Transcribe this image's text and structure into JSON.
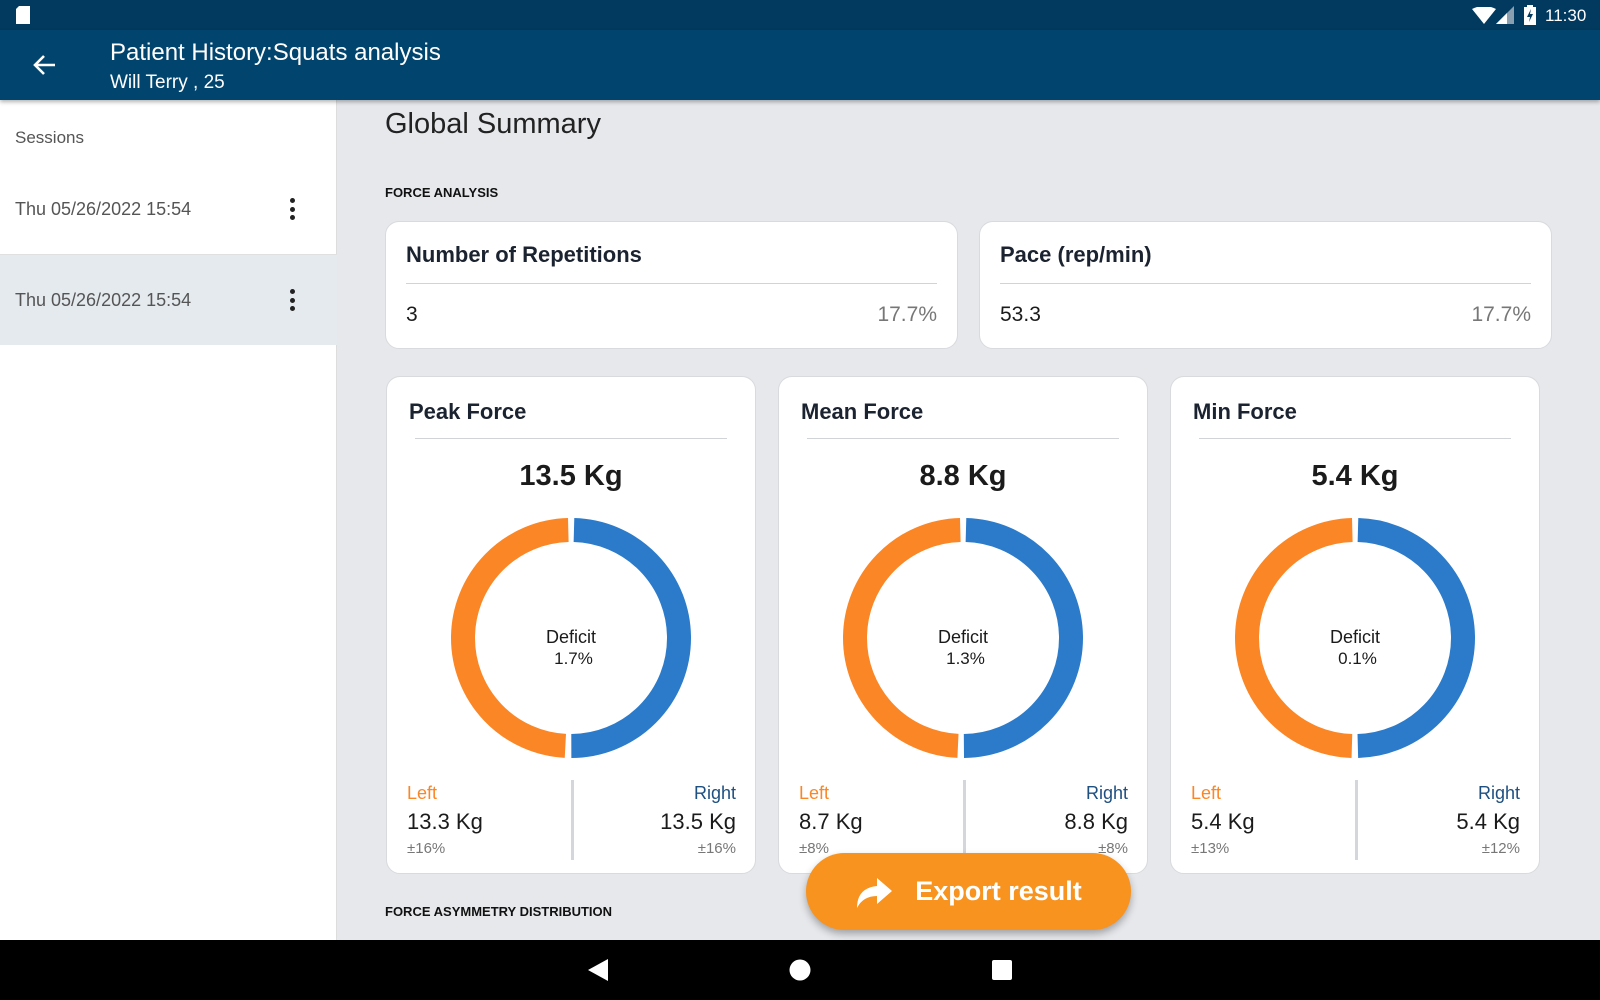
{
  "status_bar": {
    "time": "11:30",
    "icons": [
      "sd-card-icon",
      "wifi-icon",
      "signal-icon",
      "battery-charging-icon"
    ]
  },
  "app_bar": {
    "title": "Patient History:Squats analysis",
    "subtitle": "Will Terry , 25",
    "back_icon": "arrow-left-icon"
  },
  "sidebar": {
    "header": "Sessions",
    "items": [
      {
        "label": "Thu 05/26/2022 15:54",
        "selected": false
      },
      {
        "label": "Thu 05/26/2022 15:54",
        "selected": true
      }
    ]
  },
  "main": {
    "title": "Global Summary",
    "force_analysis_label": "FORCE ANALYSIS",
    "summary_cards": [
      {
        "title": "Number of Repetitions",
        "value": "3",
        "percent": "17.7%"
      },
      {
        "title": "Pace (rep/min)",
        "value": "53.3",
        "percent": "17.7%"
      }
    ],
    "force_cards": [
      {
        "title": "Peak Force",
        "total": "13.5 Kg",
        "deficit_label": "Deficit",
        "deficit": "1.7%",
        "left_label": "Left",
        "left_value": "13.3 Kg",
        "left_var": "±16%",
        "right_label": "Right",
        "right_value": "13.5 Kg",
        "right_var": "±16%",
        "left_num": 13.3,
        "right_num": 13.5
      },
      {
        "title": "Mean Force",
        "total": "8.8 Kg",
        "deficit_label": "Deficit",
        "deficit": "1.3%",
        "left_label": "Left",
        "left_value": "8.7 Kg",
        "left_var": "±8%",
        "right_label": "Right",
        "right_value": "8.8 Kg",
        "right_var": "±8%",
        "left_num": 8.7,
        "right_num": 8.8
      },
      {
        "title": "Min Force",
        "total": "5.4 Kg",
        "deficit_label": "Deficit",
        "deficit": "0.1%",
        "left_label": "Left",
        "left_value": "5.4 Kg",
        "left_var": "±13%",
        "right_label": "Right",
        "right_value": "5.4 Kg",
        "right_var": "±12%",
        "left_num": 5.4,
        "right_num": 5.4
      }
    ],
    "asymmetry_label": "FORCE ASYMMETRY DISTRIBUTION"
  },
  "export_button": {
    "label": "Export result",
    "icon": "share-arrow-icon"
  },
  "colors": {
    "left": "#fb8626",
    "right": "#2b7bca",
    "app_bar": "#01456f",
    "accent": "#f7931e",
    "right_label": "#1d4f80"
  },
  "nav_bar": {
    "icons": [
      "back-triangle-icon",
      "home-circle-icon",
      "recents-square-icon"
    ]
  }
}
